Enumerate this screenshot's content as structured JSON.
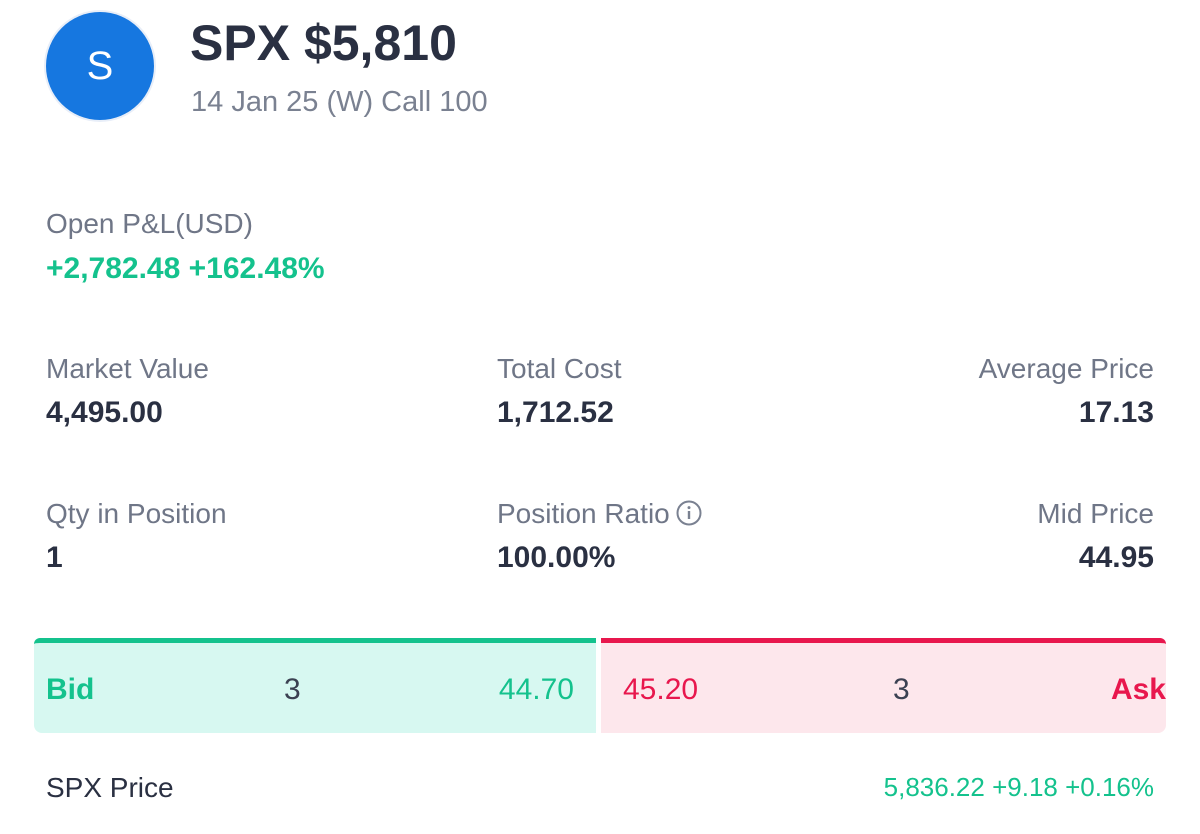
{
  "header": {
    "avatar_letter": "S",
    "title": "SPX $5,810",
    "subtitle": "14 Jan 25 (W) Call 100"
  },
  "pnl": {
    "label": "Open P&L(USD)",
    "value": "+2,782.48 +162.48%"
  },
  "stats": {
    "market_value": {
      "label": "Market Value",
      "value": "4,495.00"
    },
    "total_cost": {
      "label": "Total Cost",
      "value": "1,712.52"
    },
    "average_price": {
      "label": "Average Price",
      "value": "17.13"
    },
    "qty_in_position": {
      "label": "Qty in Position",
      "value": "1"
    },
    "position_ratio": {
      "label": "Position Ratio",
      "value": "100.00%"
    },
    "mid_price": {
      "label": "Mid Price",
      "value": "44.95"
    }
  },
  "quote": {
    "bid": {
      "label": "Bid",
      "qty": "3",
      "price": "44.70"
    },
    "ask": {
      "label": "Ask",
      "qty": "3",
      "price": "45.20"
    }
  },
  "underlying": {
    "label": "SPX Price",
    "value": "5,836.22 +9.18 +0.16%"
  },
  "colors": {
    "avatar": "#1677e0",
    "positive": "#14c28d",
    "negative": "#e8174d",
    "bid_bg": "#d7f8f1",
    "ask_bg": "#fde7ec",
    "text_primary": "#2a3042",
    "text_secondary": "#6f7687"
  },
  "icons": {
    "info": "info-circle-icon"
  }
}
